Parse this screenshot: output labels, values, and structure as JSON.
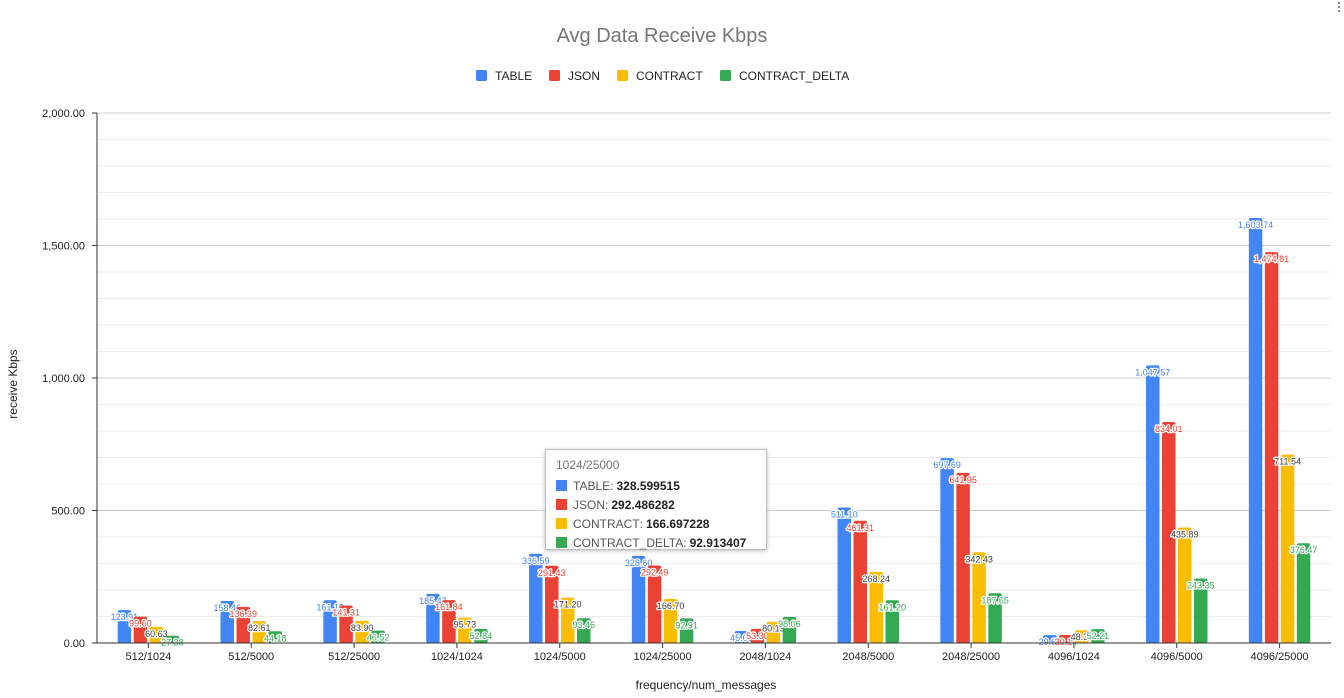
{
  "chart_data": {
    "type": "bar",
    "title": "Avg Data Receive Kbps",
    "xlabel": "frequency/num_messages",
    "ylabel": "receive Kbps",
    "ylim": [
      0,
      2000
    ],
    "yticks": [
      0,
      500,
      1000,
      1500,
      2000
    ],
    "ytick_labels": [
      "0.00",
      "500.00",
      "1,000.00",
      "1,500.00",
      "2,000.00"
    ],
    "grid": true,
    "legend_position": "top",
    "categories": [
      "512/1024",
      "512/5000",
      "512/25000",
      "1024/1024",
      "1024/5000",
      "1024/25000",
      "2048/1024",
      "2048/5000",
      "2048/25000",
      "4096/1024",
      "4096/5000",
      "4096/25000"
    ],
    "series": [
      {
        "name": "TABLE",
        "color": "#4285F4",
        "values": [
          123.91,
          158.46,
          161.18,
          185.47,
          336.59,
          328.6,
          45.09,
          511.1,
          697.69,
          29.6,
          1047.57,
          1603.74
        ],
        "labels": [
          "123.91",
          "158.46",
          "161.18",
          "185.47",
          "336.59",
          "328.60",
          "45.09",
          "511.10",
          "697.69",
          "29.60",
          "1,047.57",
          "1,603.74"
        ]
      },
      {
        "name": "JSON",
        "color": "#EA4335",
        "values": [
          99.6,
          136.39,
          141.31,
          161.84,
          291.43,
          292.49,
          53.3,
          461.31,
          641.95,
          30.14,
          834.01,
          1474.81
        ],
        "labels": [
          "99.60",
          "136.39",
          "141.31",
          "161.84",
          "291.43",
          "292.49",
          "53.30",
          "461.31",
          "641.95",
          "30.14",
          "834.01",
          "1,474.81"
        ]
      },
      {
        "name": "CONTRACT",
        "color": "#FBBC04",
        "values": [
          60.63,
          82.61,
          83.9,
          95.73,
          171.2,
          166.7,
          80.19,
          268.24,
          342.43,
          48.3,
          435.89,
          711.54
        ],
        "labels": [
          "60.63",
          "82.61",
          "83.90",
          "95.73",
          "171.20",
          "166.70",
          "80.19",
          "268.24",
          "342.43",
          "48.30",
          "435.89",
          "711.54"
        ]
      },
      {
        "name": "CONTRACT_DELTA",
        "color": "#34A853",
        "values": [
          27.38,
          44.18,
          46.52,
          52.84,
          93.46,
          92.91,
          98.06,
          161.2,
          187.65,
          52.21,
          243.35,
          376.47
        ],
        "labels": [
          "27.38",
          "44.18",
          "46.52",
          "52.84",
          "93.46",
          "92.91",
          "98.06",
          "161.20",
          "187.65",
          "52.21",
          "243.35",
          "376.47"
        ]
      }
    ]
  },
  "tooltip": {
    "title": "1024/25000",
    "rows": [
      {
        "name": "TABLE",
        "value": "328.599515",
        "color": "#4285F4"
      },
      {
        "name": "JSON",
        "value": "292.486282",
        "color": "#EA4335"
      },
      {
        "name": "CONTRACT",
        "value": "166.697228",
        "color": "#FBBC04"
      },
      {
        "name": "CONTRACT_DELTA",
        "value": "92.913407",
        "color": "#34A853"
      }
    ]
  }
}
